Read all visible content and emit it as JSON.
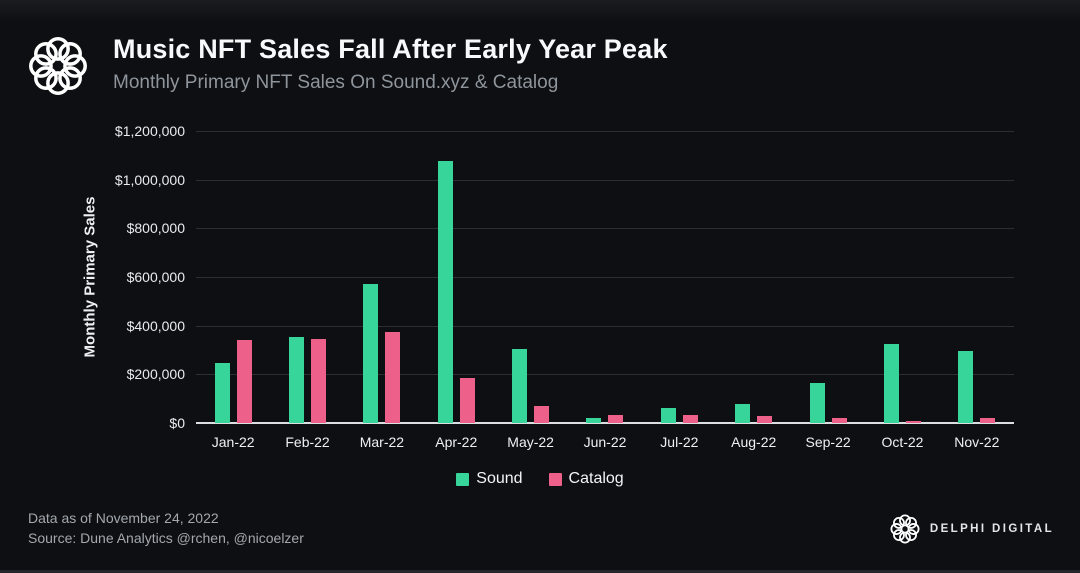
{
  "page": {
    "title": "Music NFT Sales Fall After Early Year Peak",
    "subtitle": "Monthly Primary NFT Sales On Sound.xyz & Catalog",
    "footer_note_line1": "Data as of November 24, 2022",
    "footer_note_line2": "Source: Dune Analytics @rchen, @nicoelzer",
    "brand_name": "DELPHI DIGITAL"
  },
  "colors": {
    "background": "#0d0f12",
    "sound": "#38d59b",
    "catalog": "#ec6089",
    "gridline": "#2b2e33",
    "axis_line": "#dcdfe2",
    "title_text": "#f8f9fa",
    "subtitle_text": "#8f959c",
    "tick_text": "#e9ebee",
    "footer_text": "#a3a8ae"
  },
  "chart_data": {
    "type": "bar",
    "title": "Music NFT Sales Fall After Early Year Peak",
    "subtitle": "Monthly Primary NFT Sales On Sound.xyz & Catalog",
    "xlabel": "",
    "ylabel": "Monthly Primary Sales",
    "ylim": [
      0,
      1200000
    ],
    "ytick_step": 200000,
    "ytick_labels_top_down": [
      "$1,200,000",
      "$1,000,000",
      "$800,000",
      "$600,000",
      "$400,000",
      "$200,000",
      "$0"
    ],
    "grid": true,
    "legend_position": "bottom-center",
    "categories": [
      "Jan-22",
      "Feb-22",
      "Mar-22",
      "Apr-22",
      "May-22",
      "Jun-22",
      "Jul-22",
      "Aug-22",
      "Sep-22",
      "Oct-22",
      "Nov-22"
    ],
    "series": [
      {
        "name": "Sound",
        "color": "#38d59b",
        "values": [
          245000,
          352000,
          570000,
          1075000,
          305000,
          22000,
          60000,
          80000,
          165000,
          325000,
          295000
        ]
      },
      {
        "name": "Catalog",
        "color": "#ec6089",
        "values": [
          343000,
          345000,
          375000,
          185000,
          68000,
          33000,
          32000,
          30000,
          22000,
          10000,
          19000
        ]
      }
    ]
  }
}
